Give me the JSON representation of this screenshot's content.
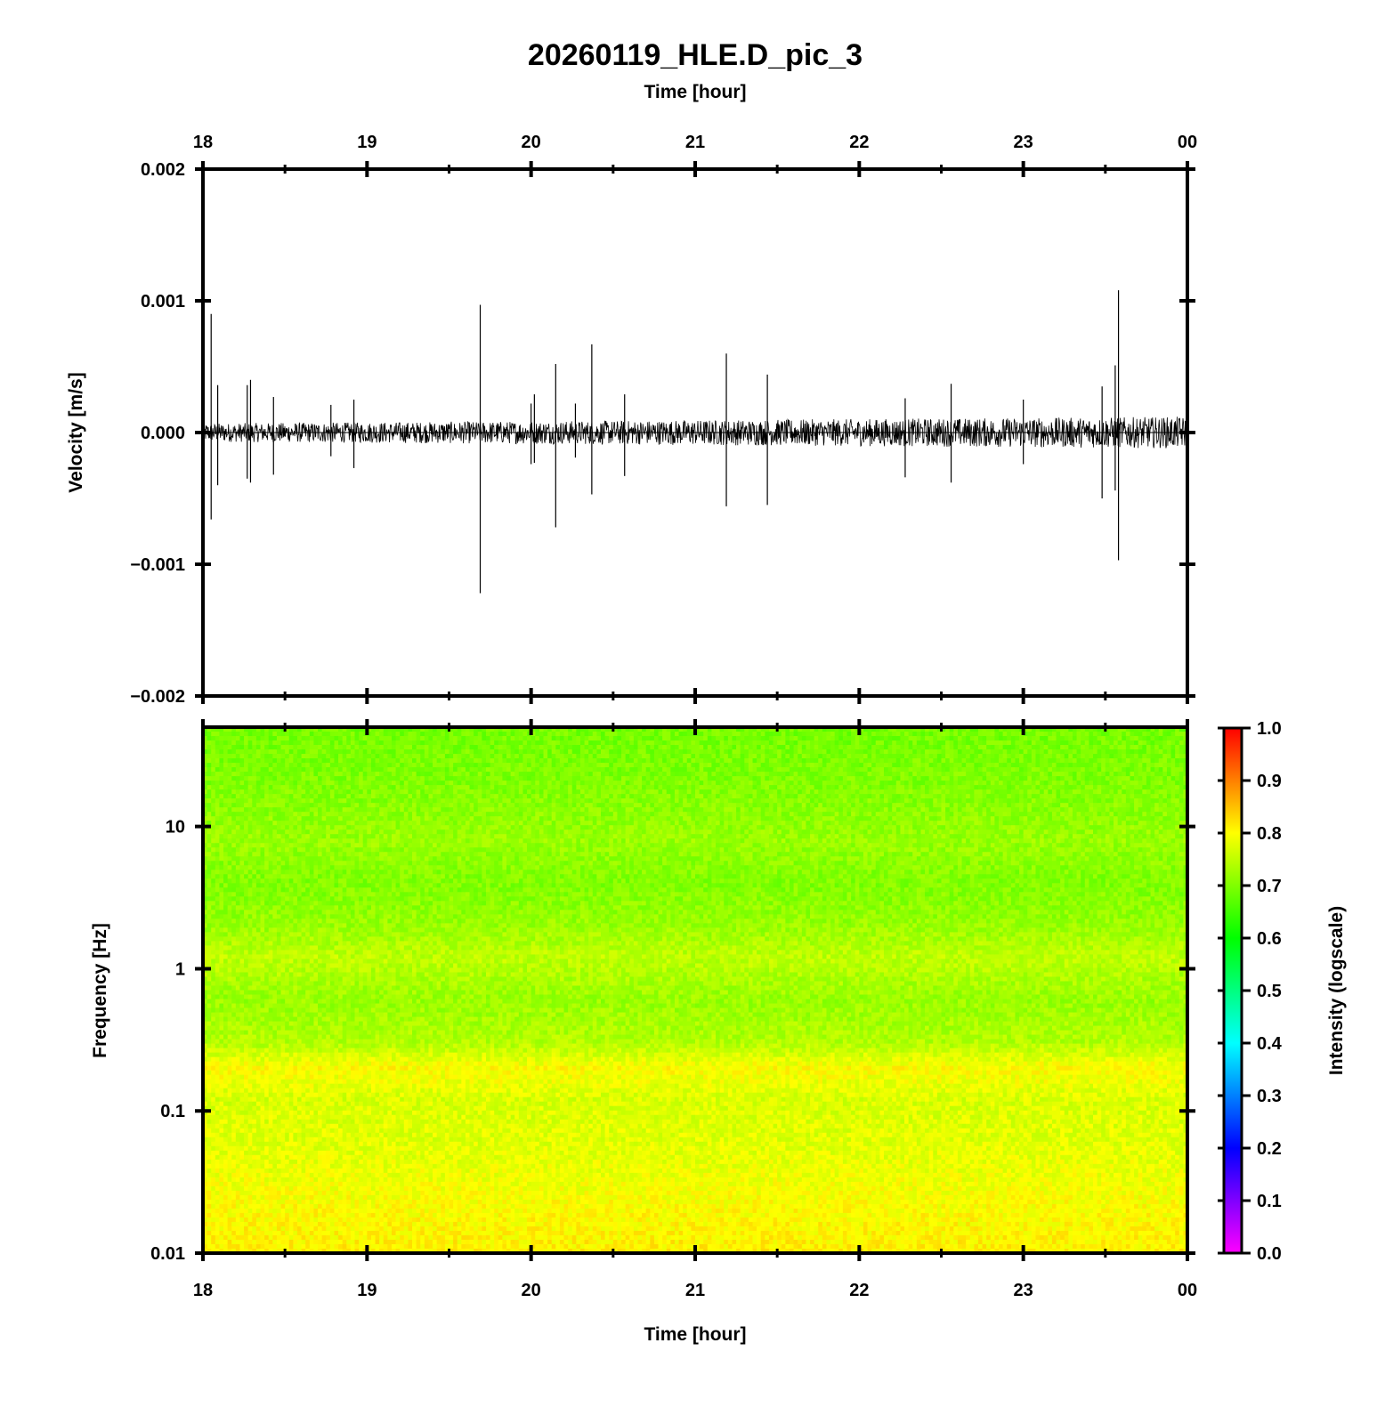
{
  "chart_data": [
    {
      "type": "line",
      "title": "20260119_HLE.D_pic_3",
      "top_axis_label": "Time [hour]",
      "ylabel": "Velocity [m/s]",
      "x_tick_labels": [
        "18",
        "19",
        "20",
        "21",
        "22",
        "23",
        "00"
      ],
      "x_ticks_hours": [
        18,
        19,
        20,
        21,
        22,
        23,
        24
      ],
      "xlim_hours": [
        18,
        24
      ],
      "y_tick_labels": [
        "0.002",
        "0.001",
        "0.000",
        "−0.001",
        "−0.002"
      ],
      "y_ticks": [
        0.002,
        0.001,
        0.0,
        -0.001,
        -0.002
      ],
      "ylim": [
        -0.002,
        0.002
      ],
      "line_color": "#000000",
      "background_noise_amplitude_start": 7e-05,
      "background_noise_amplitude_end": 0.00012,
      "spikes": [
        {
          "t": 18.05,
          "max": 0.0009,
          "min": -0.00066
        },
        {
          "t": 18.09,
          "max": 0.00036,
          "min": -0.0004
        },
        {
          "t": 18.27,
          "max": 0.00036,
          "min": -0.00035
        },
        {
          "t": 18.29,
          "max": 0.0004,
          "min": -0.00038
        },
        {
          "t": 18.43,
          "max": 0.00027,
          "min": -0.00032
        },
        {
          "t": 18.78,
          "max": 0.00021,
          "min": -0.00018
        },
        {
          "t": 18.92,
          "max": 0.00025,
          "min": -0.00027
        },
        {
          "t": 19.69,
          "max": 0.00097,
          "min": -0.00122
        },
        {
          "t": 20.0,
          "max": 0.00022,
          "min": -0.00024
        },
        {
          "t": 20.02,
          "max": 0.00029,
          "min": -0.00023
        },
        {
          "t": 20.15,
          "max": 0.00052,
          "min": -0.00072
        },
        {
          "t": 20.27,
          "max": 0.00022,
          "min": -0.00019
        },
        {
          "t": 20.37,
          "max": 0.00067,
          "min": -0.00047
        },
        {
          "t": 20.57,
          "max": 0.00029,
          "min": -0.00033
        },
        {
          "t": 21.19,
          "max": 0.0006,
          "min": -0.00056
        },
        {
          "t": 21.44,
          "max": 0.00044,
          "min": -0.00055
        },
        {
          "t": 22.28,
          "max": 0.00026,
          "min": -0.00034
        },
        {
          "t": 22.56,
          "max": 0.00037,
          "min": -0.00038
        },
        {
          "t": 23.0,
          "max": 0.00025,
          "min": -0.00024
        },
        {
          "t": 23.48,
          "max": 0.00035,
          "min": -0.0005
        },
        {
          "t": 23.56,
          "max": 0.00051,
          "min": -0.00044
        },
        {
          "t": 23.58,
          "max": 0.00108,
          "min": -0.00097
        }
      ]
    },
    {
      "type": "heatmap",
      "xlabel": "Time [hour]",
      "ylabel": "Frequency [Hz]",
      "x_tick_labels": [
        "18",
        "19",
        "20",
        "21",
        "22",
        "23",
        "00"
      ],
      "x_ticks_hours": [
        18,
        19,
        20,
        21,
        22,
        23,
        24
      ],
      "xlim_hours": [
        18,
        24
      ],
      "y_scale": "log",
      "y_tick_labels": [
        "10",
        "1",
        "0.1",
        "0.01"
      ],
      "y_ticks": [
        10,
        1,
        0.1,
        0.01
      ],
      "ylim": [
        0.01,
        50
      ],
      "colorbar": {
        "label": "Intensity (logscale)",
        "range": [
          0.0,
          1.0
        ],
        "tick_labels": [
          "1.0",
          "0.9",
          "0.8",
          "0.7",
          "0.6",
          "0.5",
          "0.4",
          "0.3",
          "0.2",
          "0.1",
          "0.0"
        ],
        "ticks": [
          1.0,
          0.9,
          0.8,
          0.7,
          0.6,
          0.5,
          0.4,
          0.3,
          0.2,
          0.1,
          0.0
        ],
        "colormap_stops": [
          {
            "value": 0.0,
            "color": "#ff00ff"
          },
          {
            "value": 0.1,
            "color": "#8000ff"
          },
          {
            "value": 0.2,
            "color": "#0000ff"
          },
          {
            "value": 0.3,
            "color": "#0080ff"
          },
          {
            "value": 0.4,
            "color": "#00ffff"
          },
          {
            "value": 0.5,
            "color": "#00ff80"
          },
          {
            "value": 0.6,
            "color": "#00ff00"
          },
          {
            "value": 0.7,
            "color": "#80ff00"
          },
          {
            "value": 0.8,
            "color": "#ffff00"
          },
          {
            "value": 0.9,
            "color": "#ff8000"
          },
          {
            "value": 1.0,
            "color": "#ff0000"
          }
        ]
      },
      "intensity_profile": [
        {
          "freq": 50,
          "intensity": 0.69
        },
        {
          "freq": 20,
          "intensity": 0.7
        },
        {
          "freq": 8,
          "intensity": 0.72
        },
        {
          "freq": 4,
          "intensity": 0.7
        },
        {
          "freq": 2,
          "intensity": 0.72
        },
        {
          "freq": 1.2,
          "intensity": 0.75
        },
        {
          "freq": 0.6,
          "intensity": 0.72
        },
        {
          "freq": 0.3,
          "intensity": 0.74
        },
        {
          "freq": 0.2,
          "intensity": 0.8
        },
        {
          "freq": 0.12,
          "intensity": 0.77
        },
        {
          "freq": 0.05,
          "intensity": 0.78
        },
        {
          "freq": 0.02,
          "intensity": 0.8
        },
        {
          "freq": 0.01,
          "intensity": 0.81
        }
      ]
    }
  ]
}
